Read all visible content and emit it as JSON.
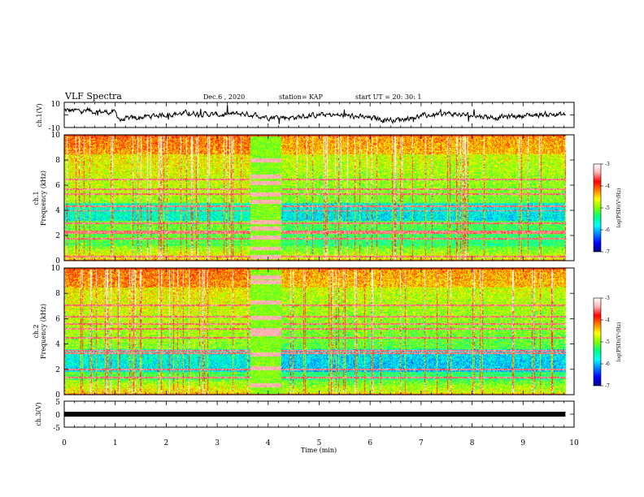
{
  "header": {
    "title": "VLF Spectra",
    "date": "Dec.6 , 2020",
    "station": "station= KAP",
    "start": "start UT = 20: 30: 1"
  },
  "chart_data": [
    {
      "type": "line",
      "panel": "ch1-waveform",
      "ylabel": "ch.1(V)",
      "ylim": [
        -10,
        10
      ],
      "y_ticks": [
        "10",
        "-10"
      ],
      "x_range_min": [
        0,
        9.83
      ],
      "line_color": "#000000",
      "trend_minutes": [
        0,
        0.5,
        1.0,
        1.1,
        1.5,
        2.0,
        2.5,
        3.0,
        3.5,
        4.0,
        4.5,
        5.0,
        5.5,
        6.0,
        6.5,
        7.0,
        7.5,
        8.0,
        8.5,
        9.0,
        9.5,
        9.8
      ],
      "trend_volts": [
        3.5,
        3.0,
        2.0,
        -4.0,
        -2.0,
        0.5,
        1.5,
        0.0,
        1.0,
        -1.5,
        -2.0,
        0.0,
        -0.5,
        -2.5,
        -4.0,
        -1.0,
        1.0,
        -0.5,
        -2.0,
        -0.5,
        0.5,
        0.0
      ]
    },
    {
      "type": "heatmap",
      "panel": "ch1-spectrogram",
      "ylabel_top": "ch.1",
      "ylabel": "Frequency (kHz)",
      "ylim": [
        0,
        10
      ],
      "y_ticks": [
        "0",
        "2",
        "4",
        "6",
        "8",
        "10"
      ],
      "x_range_min": [
        0,
        9.83
      ],
      "colorscale": [
        "#00007f",
        "#0000ff",
        "#0080ff",
        "#00ffff",
        "#00ff80",
        "#80ff00",
        "#ffff00",
        "#ff8000",
        "#ff0000",
        "#ffb0b0",
        "#ffffff"
      ],
      "colorbar": {
        "range": [
          -7,
          -3
        ],
        "ticks": [
          "-3",
          "-4",
          "-5",
          "-6",
          "-7"
        ],
        "label": "log(PSD)(V²/Hz)"
      },
      "features": {
        "gap_minutes": [
          3.65,
          4.25
        ],
        "gap_lines_khz": [
          0.3,
          1.0,
          1.9,
          2.6,
          3.1,
          4.7,
          5.3,
          6.2,
          6.7,
          8.0
        ],
        "band_lines_khz": [
          0.35,
          1.75,
          2.2,
          2.35,
          3.0,
          4.0,
          4.35,
          5.3,
          5.7,
          6.5
        ],
        "quiet_band_khz": [
          3.2,
          4.6
        ]
      }
    },
    {
      "type": "heatmap",
      "panel": "ch2-spectrogram",
      "ylabel_top": "ch.2",
      "ylabel": "Frequency (kHz)",
      "ylim": [
        0,
        10
      ],
      "y_ticks": [
        "0",
        "2",
        "4",
        "6",
        "8",
        "10"
      ],
      "x_range_min": [
        0,
        9.83
      ],
      "colorscale": [
        "#00007f",
        "#0000ff",
        "#0080ff",
        "#00ffff",
        "#00ff80",
        "#80ff00",
        "#ffff00",
        "#ff8000",
        "#ff0000",
        "#ffb0b0",
        "#ffffff"
      ],
      "colorbar": {
        "range": [
          -7,
          -3
        ],
        "ticks": [
          "-3",
          "-4",
          "-5",
          "-6",
          "-7"
        ],
        "label": "log(PSD)(V²/Hz)"
      },
      "features": {
        "gap_minutes": [
          3.65,
          4.25
        ],
        "gap_lines_khz": [
          0.8,
          2.1,
          3.2,
          4.8,
          5.1,
          6.1,
          7.3,
          8.9,
          9.3
        ],
        "band_lines_khz": [
          1.4,
          2.0,
          3.3,
          3.5,
          4.5,
          5.2,
          5.6,
          6.2,
          7.1
        ],
        "quiet_band_khz": [
          1.8,
          3.6
        ]
      }
    },
    {
      "type": "line",
      "panel": "ch3-waveform",
      "ylabel": "ch.3(V)",
      "ylim": [
        -5,
        5
      ],
      "y_ticks": [
        "5",
        "0",
        "-5"
      ],
      "x_range_min": [
        0,
        9.83
      ],
      "level_volts": 0,
      "line_color": "#000000"
    }
  ],
  "xaxis": {
    "label": "Time (min)",
    "range": [
      0,
      10
    ],
    "ticks": [
      "0",
      "1",
      "2",
      "3",
      "4",
      "5",
      "6",
      "7",
      "8",
      "9",
      "10"
    ]
  }
}
